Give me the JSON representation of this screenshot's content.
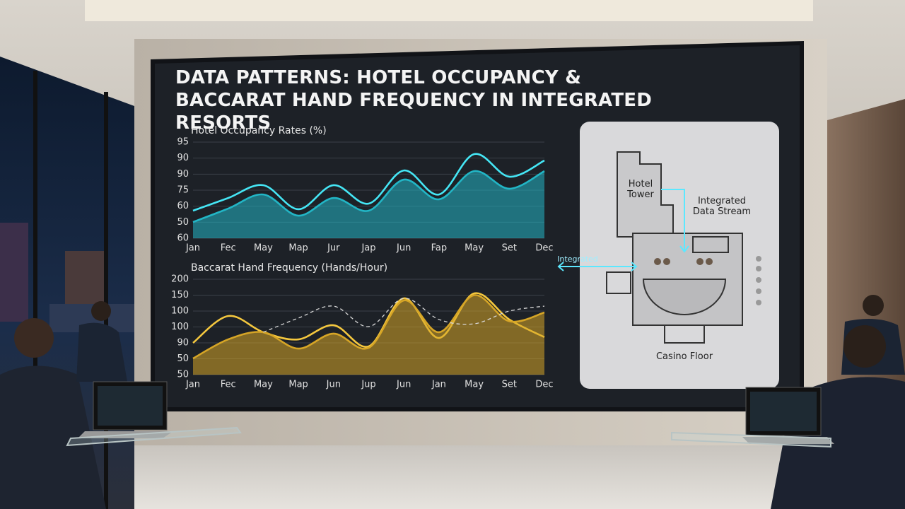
{
  "screen_title": "DATA PATTERNS: HOTEL OCCUPANCY & BACCARAT HAND FREQUENCY IN INTEGRATED RESORTS",
  "chart_data": [
    {
      "type": "line",
      "title": "Hotel Occupancy Rates (%)",
      "categories": [
        "Jan",
        "Fec",
        "May",
        "Map",
        "Jur",
        "Jap",
        "Jun",
        "Fap",
        "May",
        "Set",
        "Dec"
      ],
      "ylim": [
        0,
        6
      ],
      "yticks": [
        {
          "value": 6,
          "label": "95"
        },
        {
          "value": 5,
          "label": "90"
        },
        {
          "value": 4,
          "label": "90"
        },
        {
          "value": 3,
          "label": "75"
        },
        {
          "value": 2,
          "label": "60"
        },
        {
          "value": 1,
          "label": "50"
        },
        {
          "value": 0,
          "label": "60"
        }
      ],
      "grid": true,
      "series": [
        {
          "color": "#45e6f5",
          "style": "line",
          "values": [
            1.72,
            2.51,
            3.31,
            1.81,
            3.31,
            2.16,
            4.23,
            2.73,
            5.25,
            3.84,
            4.85
          ]
        },
        {
          "color": "#22b6c6",
          "style": "area",
          "values": [
            1.01,
            1.85,
            2.73,
            1.41,
            2.51,
            1.72,
            3.66,
            2.43,
            4.19,
            3.09,
            4.19
          ]
        }
      ]
    },
    {
      "type": "line",
      "title": "Baccarat Hand Frequency (Hands/Hour)",
      "categories": [
        "Jan",
        "Fec",
        "May",
        "Map",
        "Jun",
        "Jup",
        "Jun",
        "Jan",
        "May",
        "Set",
        "Dec"
      ],
      "ylim": [
        0,
        6
      ],
      "yticks": [
        {
          "value": 6,
          "label": "200"
        },
        {
          "value": 5,
          "label": "150"
        },
        {
          "value": 4,
          "label": "100"
        },
        {
          "value": 3,
          "label": "100"
        },
        {
          "value": 2,
          "label": "90"
        },
        {
          "value": 1,
          "label": "50"
        },
        {
          "value": 0,
          "label": "50"
        }
      ],
      "grid": true,
      "series": [
        {
          "color": "#f4c73e",
          "style": "line",
          "values": [
            2.0,
            3.69,
            2.67,
            2.22,
            3.11,
            1.78,
            4.8,
            2.31,
            5.11,
            3.47,
            2.36
          ]
        },
        {
          "color": "#d6a526",
          "style": "area",
          "values": [
            1.02,
            2.22,
            2.67,
            1.64,
            2.58,
            1.69,
            4.67,
            2.67,
            5.0,
            3.36,
            3.91
          ]
        },
        {
          "color": "#d8d8d8",
          "style": "dashed",
          "values": [
            null,
            null,
            2.67,
            3.56,
            4.31,
            3.02,
            4.8,
            3.47,
            3.2,
            4.0,
            4.31
          ]
        }
      ]
    }
  ],
  "floor_plan": {
    "tower": "Hotel Tower",
    "stream": "Integrated Data Stream",
    "casino": "Casino Floor",
    "link": "Integrated"
  }
}
